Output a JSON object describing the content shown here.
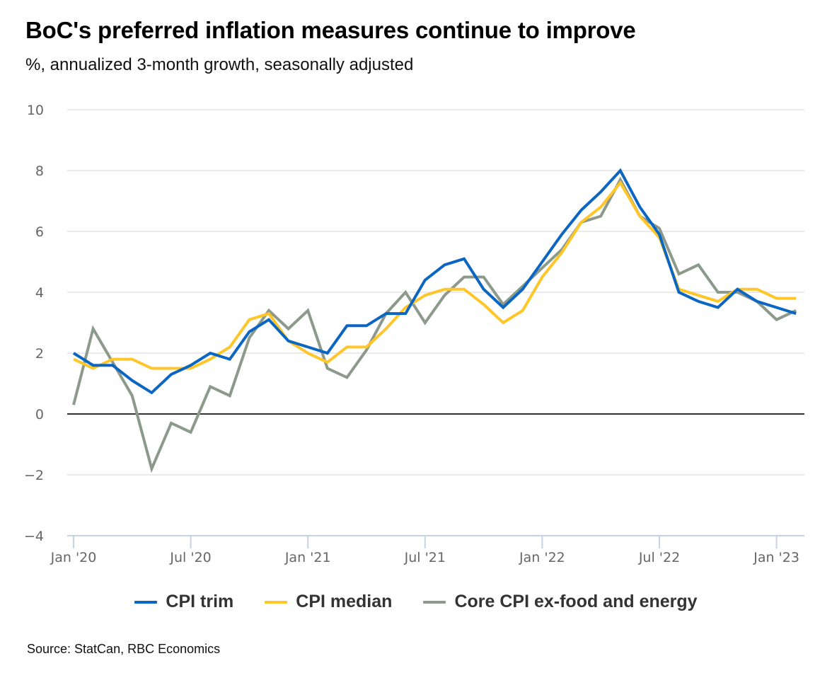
{
  "chart_data": {
    "type": "line",
    "title": "BoC's preferred inflation measures continue to improve",
    "subtitle": "%, annualized 3-month growth, seasonally adjusted",
    "xlabel": "",
    "ylabel": "",
    "ylim": [
      -4,
      10
    ],
    "yticks": [
      -4,
      -2,
      0,
      2,
      4,
      6,
      8,
      10
    ],
    "ytick_labels": [
      "−4",
      "−2",
      "0",
      "2",
      "4",
      "6",
      "8",
      "10"
    ],
    "xtick_labels": [
      "Jan '20",
      "Jul '20",
      "Jan '21",
      "Jul '21",
      "Jan '22",
      "Jul '22",
      "Jan '23"
    ],
    "xtick_index": [
      0,
      6,
      12,
      18,
      24,
      30,
      36
    ],
    "x": [
      "2020-01",
      "2020-02",
      "2020-03",
      "2020-04",
      "2020-05",
      "2020-06",
      "2020-07",
      "2020-08",
      "2020-09",
      "2020-10",
      "2020-11",
      "2020-12",
      "2021-01",
      "2021-02",
      "2021-03",
      "2021-04",
      "2021-05",
      "2021-06",
      "2021-07",
      "2021-08",
      "2021-09",
      "2021-10",
      "2021-11",
      "2021-12",
      "2022-01",
      "2022-02",
      "2022-03",
      "2022-04",
      "2022-05",
      "2022-06",
      "2022-07",
      "2022-08",
      "2022-09",
      "2022-10",
      "2022-11",
      "2022-12",
      "2023-01",
      "2023-02"
    ],
    "grid": true,
    "legend_position": "bottom",
    "series": [
      {
        "name": "CPI trim",
        "color": "#0A66C2",
        "values": [
          2.0,
          1.6,
          1.6,
          1.1,
          0.7,
          1.3,
          1.6,
          2.0,
          1.8,
          2.7,
          3.1,
          2.4,
          2.2,
          2.0,
          2.9,
          2.9,
          3.3,
          3.3,
          4.4,
          4.9,
          5.1,
          4.1,
          3.5,
          4.1,
          5.0,
          5.9,
          6.7,
          7.3,
          8.0,
          6.8,
          5.9,
          4.0,
          3.7,
          3.5,
          4.1,
          3.7,
          3.5,
          3.3
        ]
      },
      {
        "name": "CPI median",
        "color": "#FFC629",
        "values": [
          1.8,
          1.5,
          1.8,
          1.8,
          1.5,
          1.5,
          1.5,
          1.8,
          2.2,
          3.1,
          3.3,
          2.4,
          2.0,
          1.7,
          2.2,
          2.2,
          2.8,
          3.5,
          3.9,
          4.1,
          4.1,
          3.6,
          3.0,
          3.4,
          4.5,
          5.3,
          6.3,
          6.8,
          7.6,
          6.5,
          5.8,
          4.1,
          3.9,
          3.7,
          4.1,
          4.1,
          3.8,
          3.8
        ]
      },
      {
        "name": "Core CPI ex-food and energy",
        "color": "#8C9A8C",
        "values": [
          0.3,
          2.8,
          1.7,
          0.6,
          -1.8,
          -0.3,
          -0.6,
          0.9,
          0.6,
          2.5,
          3.4,
          2.8,
          3.4,
          1.5,
          1.2,
          2.1,
          3.3,
          4.0,
          3.0,
          3.9,
          4.5,
          4.5,
          3.6,
          4.2,
          4.8,
          5.4,
          6.3,
          6.5,
          7.7,
          6.5,
          6.1,
          4.6,
          4.9,
          4.0,
          4.0,
          3.7,
          3.1,
          3.4
        ]
      }
    ],
    "source": "Source: StatCan, RBC Economics"
  }
}
